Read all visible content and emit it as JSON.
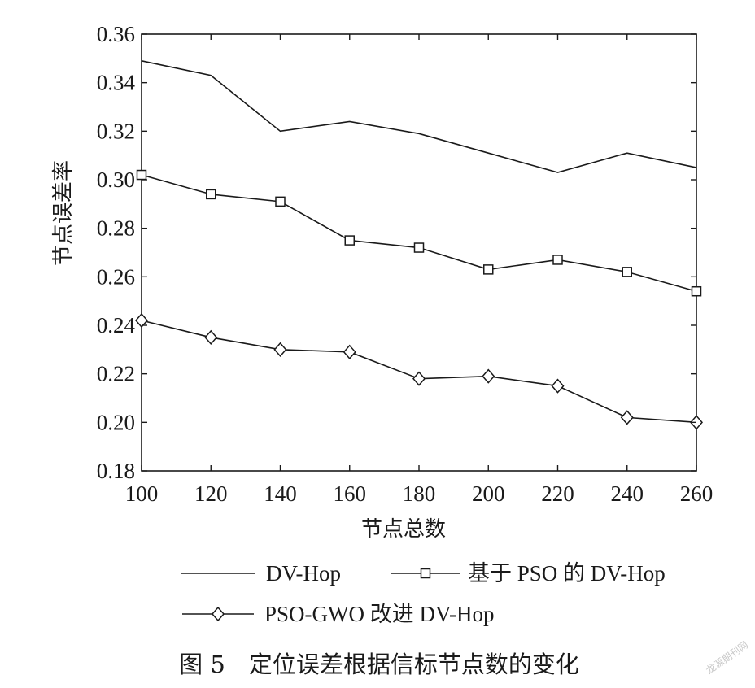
{
  "chart_data": {
    "type": "line",
    "x": [
      100,
      120,
      140,
      160,
      180,
      200,
      220,
      240,
      260
    ],
    "xlabel": "节点总数",
    "ylabel": "节点误差率",
    "xlim": [
      100,
      260
    ],
    "ylim": [
      0.18,
      0.36
    ],
    "xticks": [
      "100",
      "120",
      "140",
      "160",
      "180",
      "200",
      "220",
      "240",
      "260"
    ],
    "yticks": [
      "0.18",
      "0.20",
      "0.22",
      "0.24",
      "0.26",
      "0.28",
      "0.30",
      "0.32",
      "0.34",
      "0.36"
    ],
    "grid": false,
    "legend_position": "bottom",
    "series": [
      {
        "name": "DV-Hop",
        "marker": "none",
        "values": [
          0.349,
          0.343,
          0.32,
          0.324,
          0.319,
          0.311,
          0.303,
          0.311,
          0.305
        ]
      },
      {
        "name": "基于 PSO 的 DV-Hop",
        "marker": "square",
        "values": [
          0.302,
          0.294,
          0.291,
          0.275,
          0.272,
          0.263,
          0.267,
          0.262,
          0.254
        ]
      },
      {
        "name": "PSO-GWO 改进 DV-Hop",
        "marker": "diamond",
        "values": [
          0.242,
          0.235,
          0.23,
          0.229,
          0.218,
          0.219,
          0.215,
          0.202,
          0.2
        ]
      }
    ],
    "line_color": "#1a1a1a"
  },
  "caption": "图 5　定位误差根据信标节点数的变化",
  "watermark": "龙源期刊网"
}
